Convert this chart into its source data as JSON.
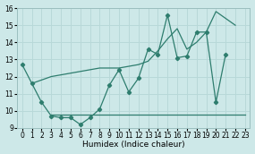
{
  "xlabel": "Humidex (Indice chaleur)",
  "xlim": [
    -0.5,
    23.5
  ],
  "ylim": [
    9,
    16
  ],
  "yticks": [
    9,
    10,
    11,
    12,
    13,
    14,
    15,
    16
  ],
  "xticks": [
    0,
    1,
    2,
    3,
    4,
    5,
    6,
    7,
    8,
    9,
    10,
    11,
    12,
    13,
    14,
    15,
    16,
    17,
    18,
    19,
    20,
    21,
    22,
    23
  ],
  "bg_color": "#cde8e8",
  "grid_color": "#b8d8d8",
  "line_color": "#2e7d6e",
  "line1_x": [
    0,
    1,
    2,
    3,
    4,
    5,
    6,
    7,
    8,
    9,
    10,
    11,
    12,
    13,
    14,
    15,
    16,
    17,
    18,
    19,
    20,
    21
  ],
  "line1_y": [
    12.7,
    11.6,
    10.5,
    9.7,
    9.6,
    9.6,
    9.2,
    9.6,
    10.1,
    11.5,
    12.4,
    11.1,
    11.9,
    13.6,
    13.3,
    15.6,
    13.1,
    13.2,
    14.6,
    14.6,
    10.5,
    13.3
  ],
  "line2_x": [
    3,
    23
  ],
  "line2_y": [
    9.8,
    9.8
  ],
  "trend_x": [
    1,
    2,
    3,
    4,
    5,
    6,
    7,
    8,
    9,
    10,
    11,
    12,
    13,
    14,
    15,
    16,
    17,
    18,
    19,
    20,
    22
  ],
  "trend_y": [
    11.6,
    11.8,
    12.0,
    12.1,
    12.2,
    12.3,
    12.4,
    12.5,
    12.5,
    12.5,
    12.6,
    12.7,
    12.9,
    13.5,
    14.2,
    14.8,
    13.6,
    14.0,
    14.6,
    15.8,
    15.0
  ]
}
